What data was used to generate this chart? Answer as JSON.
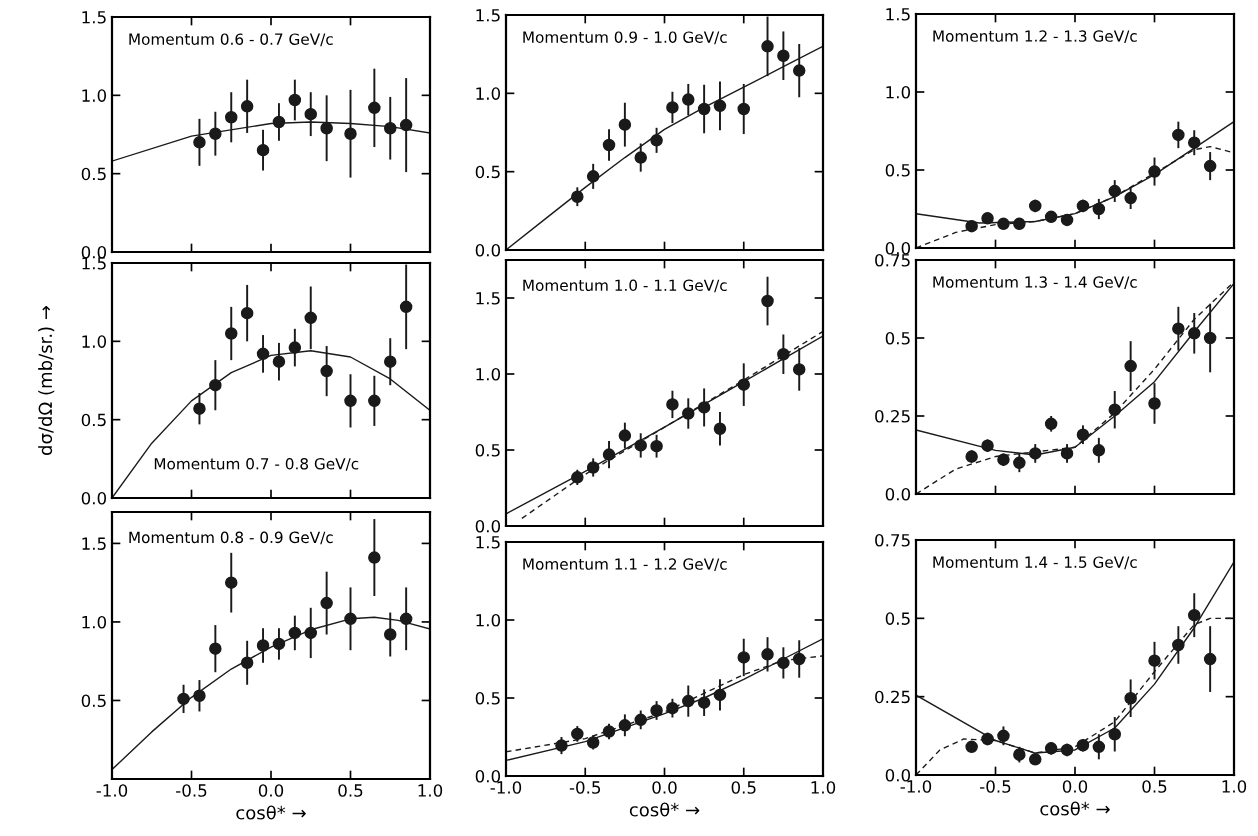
{
  "chart_data": [
    {
      "type": "scatter",
      "title": "Momentum 0.6 - 0.7 GeV/c",
      "xlim": [
        -1,
        1
      ],
      "ylim": [
        0,
        1.5
      ],
      "tick_labels": "y",
      "marker": "circle",
      "grid": false,
      "xticks": [
        -1,
        -0.5,
        0,
        0.5,
        1
      ],
      "yticks": [
        {
          "value": 0,
          "label": "0.0"
        },
        {
          "value": 0.5,
          "label": "0.5"
        },
        {
          "value": 1,
          "label": "1.0"
        },
        {
          "value": 1.5,
          "label": "1.5"
        }
      ],
      "series": [
        {
          "color": "#1a1a1a",
          "x": [
            -0.45,
            -0.35,
            -0.25,
            -0.15,
            -0.05,
            0.05,
            0.15,
            0.25,
            0.35,
            0.5,
            0.65,
            0.75,
            0.85
          ],
          "values": [
            0.7,
            0.755,
            0.86,
            0.93,
            0.65,
            0.83,
            0.97,
            0.88,
            0.79,
            0.755,
            0.92,
            0.79,
            0.81
          ],
          "errors": [
            0.15,
            0.14,
            0.16,
            0.17,
            0.13,
            0.12,
            0.13,
            0.14,
            0.21,
            0.28,
            0.25,
            0.2,
            0.3
          ]
        },
        {
          "type": "line",
          "color": "#1a1a1a",
          "marker": "none",
          "line_style": "solid",
          "x": [
            -1,
            -0.5,
            0,
            0.25,
            0.5,
            0.75,
            1
          ],
          "values": [
            0.58,
            0.74,
            0.82,
            0.83,
            0.82,
            0.8,
            0.76
          ]
        }
      ]
    },
    {
      "type": "scatter",
      "title": "Momentum 0.9 - 1.0 GeV/c",
      "xlim": [
        -1,
        1
      ],
      "ylim": [
        0,
        1.5
      ],
      "tick_labels": "y",
      "marker": "circle",
      "grid": false,
      "xticks": [
        -1,
        -0.5,
        0,
        0.5,
        1
      ],
      "yticks": [
        {
          "value": 0,
          "label": "0.0"
        },
        {
          "value": 0.5,
          "label": "0.5"
        },
        {
          "value": 1,
          "label": "1.0"
        },
        {
          "value": 1.5,
          "label": "1.5"
        }
      ],
      "series": [
        {
          "color": "#1a1a1a",
          "x": [
            -0.55,
            -0.45,
            -0.35,
            -0.25,
            -0.15,
            -0.05,
            0.05,
            0.15,
            0.25,
            0.35,
            0.5,
            0.65,
            0.75,
            0.85
          ],
          "values": [
            0.34,
            0.47,
            0.67,
            0.8,
            0.59,
            0.7,
            0.91,
            0.96,
            0.9,
            0.92,
            0.9,
            1.3,
            1.24,
            1.145
          ],
          "errors": [
            0.06,
            0.08,
            0.1,
            0.14,
            0.09,
            0.08,
            0.1,
            0.1,
            0.155,
            0.155,
            0.16,
            0.19,
            0.155,
            0.17
          ]
        },
        {
          "type": "line",
          "color": "#1a1a1a",
          "marker": "none",
          "line_style": "solid",
          "x": [
            -1,
            -0.75,
            -0.5,
            -0.25,
            0,
            0.25,
            0.5,
            0.75,
            1
          ],
          "values": [
            0,
            0.2,
            0.4,
            0.59,
            0.77,
            0.91,
            1.04,
            1.17,
            1.3
          ]
        }
      ]
    },
    {
      "type": "scatter",
      "title": "Momentum 1.2 - 1.3 GeV/c",
      "xlim": [
        -1,
        1
      ],
      "ylim": [
        0,
        1.5
      ],
      "tick_labels": "y",
      "marker": "circle",
      "grid": false,
      "xticks": [
        -1,
        -0.5,
        0,
        0.5,
        1
      ],
      "yticks": [
        {
          "value": 0,
          "label": "0.0"
        },
        {
          "value": 0.5,
          "label": "0.5"
        },
        {
          "value": 1,
          "label": "1.0"
        },
        {
          "value": 1.5,
          "label": "1.5"
        }
      ],
      "series": [
        {
          "color": "#1a1a1a",
          "x": [
            -0.65,
            -0.55,
            -0.45,
            -0.35,
            -0.25,
            -0.15,
            -0.05,
            0.05,
            0.15,
            0.25,
            0.35,
            0.5,
            0.65,
            0.75,
            0.85
          ],
          "values": [
            0.14,
            0.19,
            0.155,
            0.155,
            0.27,
            0.2,
            0.18,
            0.27,
            0.25,
            0.365,
            0.32,
            0.49,
            0.725,
            0.675,
            0.525
          ],
          "errors": [
            0.03,
            0.03,
            0.03,
            0.03,
            0.04,
            0.03,
            0.03,
            0.04,
            0.065,
            0.07,
            0.07,
            0.09,
            0.085,
            0.08,
            0.09
          ]
        },
        {
          "type": "line",
          "color": "#1a1a1a",
          "marker": "none",
          "line_style": "solid",
          "x": [
            -1,
            -0.6,
            -0.25,
            0,
            0.25,
            0.5,
            0.75,
            1
          ],
          "values": [
            0.22,
            0.16,
            0.17,
            0.22,
            0.33,
            0.47,
            0.64,
            0.81
          ]
        },
        {
          "type": "line",
          "color": "#1a1a1a",
          "marker": "none",
          "line_style": "dashed",
          "x": [
            -1,
            -0.75,
            -0.5,
            -0.25,
            0,
            0.25,
            0.5,
            0.75,
            0.85,
            1
          ],
          "values": [
            0,
            0.1,
            0.15,
            0.17,
            0.22,
            0.33,
            0.48,
            0.63,
            0.65,
            0.61
          ]
        }
      ]
    },
    {
      "type": "scatter",
      "title": "Momentum 0.7 - 0.8 GeV/c",
      "ylabel": "dσ/dΩ (mb/sr.) →",
      "xlim": [
        -1,
        1
      ],
      "ylim": [
        0,
        1.5
      ],
      "tick_labels": "y",
      "marker": "circle",
      "grid": false,
      "xticks": [
        -1,
        -0.5,
        0,
        0.5,
        1
      ],
      "yticks": [
        {
          "value": 0,
          "label": "0.0"
        },
        {
          "value": 0.5,
          "label": "0.5"
        },
        {
          "value": 1,
          "label": "1.0"
        },
        {
          "value": 1.5,
          "label": "1.5"
        }
      ],
      "series": [
        {
          "color": "#1a1a1a",
          "x": [
            -0.45,
            -0.35,
            -0.25,
            -0.15,
            -0.05,
            0.05,
            0.15,
            0.25,
            0.35,
            0.5,
            0.65,
            0.75,
            0.85
          ],
          "values": [
            0.57,
            0.72,
            1.05,
            1.18,
            0.92,
            0.87,
            0.96,
            1.15,
            0.81,
            0.62,
            0.62,
            0.87,
            1.22
          ],
          "errors": [
            0.1,
            0.16,
            0.17,
            0.18,
            0.12,
            0.12,
            0.12,
            0.2,
            0.16,
            0.17,
            0.16,
            0.15,
            0.27
          ]
        },
        {
          "type": "line",
          "color": "#1a1a1a",
          "marker": "none",
          "line_style": "solid",
          "x": [
            -1,
            -0.75,
            -0.5,
            -0.25,
            0,
            0.25,
            0.5,
            0.75,
            1
          ],
          "values": [
            0,
            0.35,
            0.62,
            0.8,
            0.91,
            0.94,
            0.9,
            0.76,
            0.56
          ]
        }
      ]
    },
    {
      "type": "scatter",
      "title": "Momentum 1.0 - 1.1 GeV/c",
      "xlim": [
        -1,
        1
      ],
      "ylim": [
        0,
        1.75
      ],
      "tick_labels": "y",
      "marker": "circle",
      "grid": false,
      "xticks": [
        -1,
        -0.5,
        0,
        0.5,
        1
      ],
      "yticks": [
        {
          "value": 0,
          "label": "0.0"
        },
        {
          "value": 0.5,
          "label": "0.5"
        },
        {
          "value": 1,
          "label": "1.0"
        },
        {
          "value": 1.5,
          "label": "1.5"
        }
      ],
      "series": [
        {
          "color": "#1a1a1a",
          "x": [
            -0.55,
            -0.45,
            -0.35,
            -0.25,
            -0.15,
            -0.05,
            0.05,
            0.15,
            0.25,
            0.35,
            0.5,
            0.65,
            0.75,
            0.85
          ],
          "values": [
            0.32,
            0.385,
            0.47,
            0.595,
            0.53,
            0.525,
            0.8,
            0.74,
            0.78,
            0.64,
            0.93,
            1.48,
            1.13,
            1.03
          ],
          "errors": [
            0.05,
            0.06,
            0.09,
            0.085,
            0.08,
            0.075,
            0.09,
            0.1,
            0.125,
            0.11,
            0.14,
            0.16,
            0.13,
            0.14
          ]
        },
        {
          "type": "line",
          "color": "#1a1a1a",
          "marker": "none",
          "line_style": "solid",
          "x": [
            -1,
            -0.5,
            0,
            0.5,
            1
          ],
          "values": [
            0.08,
            0.36,
            0.65,
            0.95,
            1.25
          ]
        },
        {
          "type": "line",
          "color": "#1a1a1a",
          "marker": "none",
          "line_style": "dashed",
          "x": [
            -0.9,
            -0.5,
            0,
            0.5,
            1
          ],
          "values": [
            0.05,
            0.34,
            0.65,
            0.96,
            1.28
          ]
        }
      ]
    },
    {
      "type": "scatter",
      "title": "Momentum 1.3 - 1.4 GeV/c",
      "xlim": [
        -1,
        1
      ],
      "ylim": [
        0,
        0.75
      ],
      "tick_labels": "y",
      "marker": "circle",
      "grid": false,
      "xticks": [
        -1,
        -0.5,
        0,
        0.5,
        1
      ],
      "yticks": [
        {
          "value": 0,
          "label": "0.0"
        },
        {
          "value": 0.25,
          "label": "0.25"
        },
        {
          "value": 0.5,
          "label": "0.5"
        },
        {
          "value": 0.75,
          "label": "0.75"
        }
      ],
      "series": [
        {
          "color": "#1a1a1a",
          "x": [
            -0.65,
            -0.55,
            -0.45,
            -0.35,
            -0.25,
            -0.15,
            -0.05,
            0.05,
            0.15,
            0.25,
            0.35,
            0.5,
            0.65,
            0.75,
            0.85
          ],
          "values": [
            0.12,
            0.155,
            0.11,
            0.1,
            0.13,
            0.225,
            0.13,
            0.19,
            0.14,
            0.27,
            0.41,
            0.29,
            0.53,
            0.515,
            0.5
          ],
          "errors": [
            0.02,
            0.02,
            0.02,
            0.03,
            0.03,
            0.025,
            0.03,
            0.03,
            0.04,
            0.06,
            0.08,
            0.065,
            0.07,
            0.065,
            0.11
          ]
        },
        {
          "type": "line",
          "color": "#1a1a1a",
          "marker": "none",
          "line_style": "solid",
          "x": [
            -1,
            -0.5,
            -0.25,
            0,
            0.25,
            0.5,
            0.75,
            1
          ],
          "values": [
            0.205,
            0.14,
            0.125,
            0.15,
            0.25,
            0.36,
            0.52,
            0.675
          ]
        },
        {
          "type": "line",
          "color": "#1a1a1a",
          "marker": "none",
          "line_style": "dashed",
          "x": [
            -1,
            -0.75,
            -0.5,
            0,
            0.25,
            0.5,
            0.75,
            1
          ],
          "values": [
            0,
            0.08,
            0.12,
            0.15,
            0.26,
            0.4,
            0.56,
            0.68
          ]
        }
      ]
    },
    {
      "type": "scatter",
      "title": "Momentum 0.8 - 0.9 GeV/c",
      "xlabel": "cosθ* →",
      "xlim": [
        -1,
        1
      ],
      "ylim": [
        0,
        1.7
      ],
      "marker": "circle",
      "grid": false,
      "xticks": [
        {
          "value": -1,
          "label": "-1.0"
        },
        {
          "value": -0.5,
          "label": "-0.5"
        },
        {
          "value": 0,
          "label": "0.0"
        },
        {
          "value": 0.5,
          "label": "0.5"
        },
        {
          "value": 1,
          "label": "1.0"
        }
      ],
      "yticks": [
        {
          "value": 0.5,
          "label": "0.5"
        },
        {
          "value": 1,
          "label": "1.0"
        },
        {
          "value": 1.5,
          "label": "1.5"
        }
      ],
      "series": [
        {
          "color": "#1a1a1a",
          "x": [
            -0.55,
            -0.45,
            -0.35,
            -0.25,
            -0.15,
            -0.05,
            0.05,
            0.15,
            0.25,
            0.35,
            0.5,
            0.65,
            0.75,
            0.85
          ],
          "values": [
            0.51,
            0.53,
            0.83,
            1.25,
            0.74,
            0.85,
            0.86,
            0.93,
            0.93,
            1.12,
            1.02,
            1.41,
            0.92,
            1.02
          ],
          "errors": [
            0.09,
            0.1,
            0.15,
            0.19,
            0.14,
            0.11,
            0.1,
            0.11,
            0.16,
            0.2,
            0.2,
            0.245,
            0.14,
            0.2
          ]
        },
        {
          "type": "line",
          "color": "#1a1a1a",
          "marker": "none",
          "line_style": "solid",
          "x": [
            -1,
            -0.75,
            -0.5,
            -0.25,
            0,
            0.25,
            0.5,
            0.65,
            0.8,
            1
          ],
          "values": [
            0.06,
            0.3,
            0.52,
            0.7,
            0.84,
            0.95,
            1.02,
            1.03,
            1.01,
            0.955
          ]
        }
      ]
    },
    {
      "type": "scatter",
      "title": "Momentum 1.1 - 1.2 GeV/c",
      "xlabel": "cosθ* →",
      "xlim": [
        -1,
        1
      ],
      "ylim": [
        0,
        1.5
      ],
      "marker": "circle",
      "grid": false,
      "xticks": [
        {
          "value": -1,
          "label": "-1.0"
        },
        {
          "value": -0.5,
          "label": "-0.5"
        },
        {
          "value": 0,
          "label": "0.0"
        },
        {
          "value": 0.5,
          "label": "0.5"
        },
        {
          "value": 1,
          "label": "1.0"
        }
      ],
      "yticks": [
        {
          "value": 0,
          "label": "0.0"
        },
        {
          "value": 0.5,
          "label": "0.5"
        },
        {
          "value": 1,
          "label": "1.0"
        },
        {
          "value": 1.5,
          "label": "1.5"
        }
      ],
      "series": [
        {
          "color": "#1a1a1a",
          "x": [
            -0.65,
            -0.55,
            -0.45,
            -0.35,
            -0.25,
            -0.15,
            -0.05,
            0.05,
            0.15,
            0.25,
            0.35,
            0.5,
            0.65,
            0.75,
            0.85
          ],
          "values": [
            0.195,
            0.27,
            0.215,
            0.285,
            0.325,
            0.36,
            0.42,
            0.435,
            0.48,
            0.47,
            0.52,
            0.76,
            0.78,
            0.725,
            0.75
          ],
          "errors": [
            0.055,
            0.05,
            0.045,
            0.05,
            0.07,
            0.06,
            0.06,
            0.06,
            0.1,
            0.085,
            0.1,
            0.12,
            0.11,
            0.1,
            0.12
          ]
        },
        {
          "type": "line",
          "color": "#1a1a1a",
          "marker": "none",
          "line_style": "solid",
          "x": [
            -1,
            -0.5,
            0,
            0.25,
            0.5,
            0.75,
            1
          ],
          "values": [
            0.1,
            0.22,
            0.4,
            0.5,
            0.62,
            0.75,
            0.88
          ]
        },
        {
          "type": "line",
          "color": "#1a1a1a",
          "marker": "none",
          "line_style": "dashed",
          "x": [
            -1,
            -0.5,
            0,
            0.5,
            0.75,
            1
          ],
          "values": [
            0.155,
            0.24,
            0.41,
            0.65,
            0.74,
            0.77
          ]
        }
      ]
    },
    {
      "type": "scatter",
      "title": "Momentum 1.4 - 1.5 GeV/c",
      "xlabel": "cosθ* →",
      "xlim": [
        -1,
        1
      ],
      "ylim": [
        0,
        0.75
      ],
      "marker": "circle",
      "grid": false,
      "xticks": [
        {
          "value": -1,
          "label": "-1.0"
        },
        {
          "value": -0.5,
          "label": "-0.5"
        },
        {
          "value": 0,
          "label": "0.0"
        },
        {
          "value": 0.5,
          "label": "0.5"
        },
        {
          "value": 1,
          "label": "1.0"
        }
      ],
      "yticks": [
        {
          "value": 0,
          "label": "0.0"
        },
        {
          "value": 0.25,
          "label": "0.25"
        },
        {
          "value": 0.5,
          "label": "0.5"
        },
        {
          "value": 0.75,
          "label": "0.75"
        }
      ],
      "series": [
        {
          "color": "#1a1a1a",
          "x": [
            -0.65,
            -0.55,
            -0.45,
            -0.35,
            -0.25,
            -0.15,
            -0.05,
            0.05,
            0.15,
            0.25,
            0.35,
            0.5,
            0.65,
            0.75,
            0.85
          ],
          "values": [
            0.09,
            0.115,
            0.125,
            0.065,
            0.05,
            0.085,
            0.08,
            0.095,
            0.09,
            0.13,
            0.245,
            0.365,
            0.415,
            0.51,
            0.37
          ],
          "errors": [
            0.01,
            0.02,
            0.03,
            0.025,
            0.015,
            0.02,
            0.02,
            0.02,
            0.04,
            0.055,
            0.06,
            0.06,
            0.06,
            0.07,
            0.105
          ]
        },
        {
          "type": "line",
          "color": "#1a1a1a",
          "marker": "none",
          "line_style": "solid",
          "x": [
            -1,
            -0.5,
            -0.25,
            0,
            0.25,
            0.5,
            0.75,
            1
          ],
          "values": [
            0.255,
            0.11,
            0.07,
            0.08,
            0.15,
            0.29,
            0.47,
            0.68
          ]
        },
        {
          "type": "line",
          "color": "#1a1a1a",
          "marker": "none",
          "line_style": "dashed",
          "x": [
            -1,
            -0.85,
            -0.7,
            -0.5,
            -0.25,
            0,
            0.25,
            0.5,
            0.75,
            0.85,
            1
          ],
          "values": [
            0,
            0.08,
            0.115,
            0.11,
            0.07,
            0.09,
            0.17,
            0.33,
            0.48,
            0.5,
            0.5
          ]
        }
      ]
    }
  ]
}
